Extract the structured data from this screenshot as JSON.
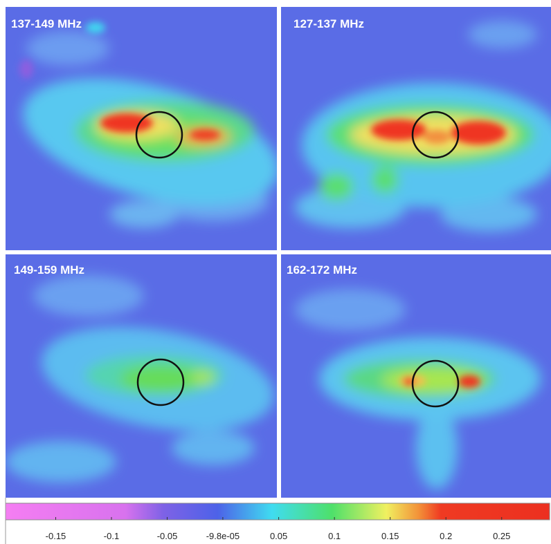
{
  "panels": [
    {
      "label": "137-149 MHz"
    },
    {
      "label": "127-137 MHz"
    },
    {
      "label": "149-159 MHz"
    },
    {
      "label": "162-172 MHz"
    }
  ],
  "colorbar": {
    "lim": [
      -0.195,
      0.293
    ],
    "ticks": [
      -0.15,
      -0.1,
      -0.05,
      {
        "value": -9.8e-05,
        "label": "-9.8e-05"
      },
      0.05,
      0.1,
      0.15,
      0.2,
      0.25
    ]
  }
}
